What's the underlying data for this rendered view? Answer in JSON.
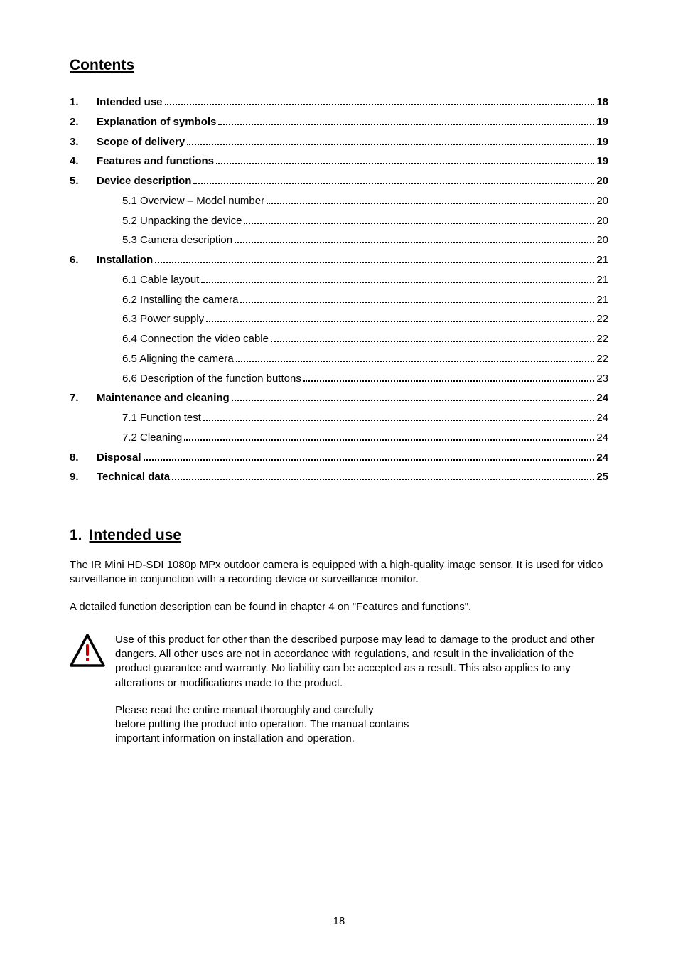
{
  "headings": {
    "contents": "Contents",
    "section1_number": "1.",
    "section1_title": "Intended use"
  },
  "toc": [
    {
      "num": "1.",
      "text": "Intended use",
      "page": "18",
      "bold": true,
      "sub": false
    },
    {
      "num": "2.",
      "text": "Explanation of symbols ",
      "page": "19",
      "bold": true,
      "sub": false
    },
    {
      "num": "3.",
      "text": "Scope of delivery ",
      "page": "19",
      "bold": true,
      "sub": false
    },
    {
      "num": "4.",
      "text": "Features and functions ",
      "page": "19",
      "bold": true,
      "sub": false
    },
    {
      "num": "5.",
      "text": "Device description",
      "page": "20",
      "bold": true,
      "sub": false
    },
    {
      "num": "",
      "text": "5.1 Overview – Model number ",
      "page": "20",
      "bold": false,
      "sub": true
    },
    {
      "num": "",
      "text": "5.2 Unpacking the device",
      "page": "20",
      "bold": false,
      "sub": true
    },
    {
      "num": "",
      "text": "5.3 Camera description",
      "page": "20",
      "bold": false,
      "sub": true
    },
    {
      "num": "6.",
      "text": "Installation",
      "page": "21",
      "bold": true,
      "sub": false
    },
    {
      "num": "",
      "text": "6.1 Cable layout ",
      "page": "21",
      "bold": false,
      "sub": true
    },
    {
      "num": "",
      "text": "6.2 Installing the camera ",
      "page": "21",
      "bold": false,
      "sub": true
    },
    {
      "num": "",
      "text": "6.3 Power supply",
      "page": "22",
      "bold": false,
      "sub": true
    },
    {
      "num": "",
      "text": "6.4 Connection the video cable",
      "page": "22",
      "bold": false,
      "sub": true
    },
    {
      "num": "",
      "text": "6.5 Aligning the camera ",
      "page": "22",
      "bold": false,
      "sub": true
    },
    {
      "num": "",
      "text": "6.6 Description of the function buttons",
      "page": "23",
      "bold": false,
      "sub": true
    },
    {
      "num": "7.",
      "text": "Maintenance and cleaning ",
      "page": "24",
      "bold": true,
      "sub": false
    },
    {
      "num": "",
      "text": "7.1 Function test",
      "page": "24",
      "bold": false,
      "sub": true
    },
    {
      "num": "",
      "text": "7.2 Cleaning ",
      "page": "24",
      "bold": false,
      "sub": true
    },
    {
      "num": "8.",
      "text": "Disposal",
      "page": "24",
      "bold": true,
      "sub": false
    },
    {
      "num": "9.",
      "text": "Technical data",
      "page": "25",
      "bold": true,
      "sub": false
    }
  ],
  "body": {
    "para1": "The IR Mini HD-SDI 1080p MPx outdoor camera is equipped with a high-quality image sensor. It is used for video surveillance in conjunction with a recording device or surveillance monitor.",
    "para2": "A detailed function description can be found in chapter 4 on \"Features and functions\".",
    "warning": "Use of this product for other than the described purpose may lead to damage to the product and other dangers. All other uses are not in accordance with regulations, and result in the invalidation of the product guarantee and warranty. No liability can be accepted as a result. This also applies to any alterations or modifications made to the product.",
    "warning2_l1": "Please read the entire manual thoroughly and carefully",
    "warning2_l2": "before putting the product into operation. The manual contains",
    "warning2_l3": "important information on installation and operation."
  },
  "icon": {
    "stroke": "#000000",
    "fill_bg": "#ffffff",
    "bang_color": "#c00000"
  },
  "page_number": "18"
}
